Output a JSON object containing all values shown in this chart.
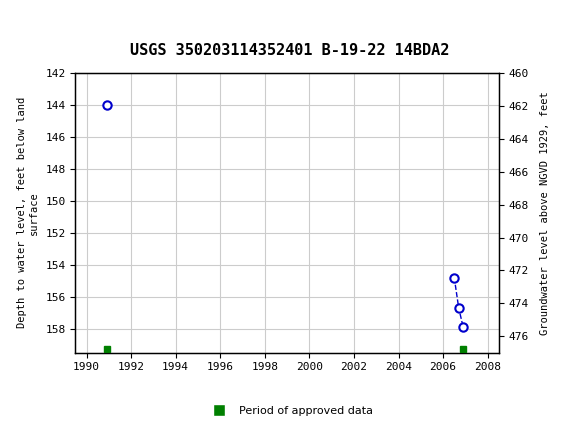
{
  "title": "USGS 350203114352401 B-19-22 14BDA2",
  "ylabel_left": "Depth to water level, feet below land\nsurface",
  "ylabel_right": "Groundwater level above NGVD 1929, feet",
  "xlim": [
    1989.5,
    2008.5
  ],
  "ylim_left": [
    142,
    159.5
  ],
  "ylim_right": [
    460,
    477
  ],
  "xticks": [
    1990,
    1992,
    1994,
    1996,
    1998,
    2000,
    2002,
    2004,
    2006,
    2008
  ],
  "yticks_left": [
    142,
    144,
    146,
    148,
    150,
    152,
    154,
    156,
    158
  ],
  "yticks_right": [
    460,
    462,
    464,
    466,
    468,
    470,
    472,
    474,
    476
  ],
  "data_points": [
    {
      "x": 1990.9,
      "y_left": 144.0
    },
    {
      "x": 2006.5,
      "y_left": 154.8
    },
    {
      "x": 2006.7,
      "y_left": 156.7
    },
    {
      "x": 2006.9,
      "y_left": 157.9
    }
  ],
  "approved_bars": [
    {
      "x": 1990.9,
      "y_left": 159.3
    },
    {
      "x": 2006.9,
      "y_left": 159.3
    }
  ],
  "point_color": "#0000cc",
  "approved_color": "#008000",
  "header_color": "#1a7a4a",
  "background_color": "#ffffff",
  "grid_color": "#cccccc",
  "font_family": "DejaVu Sans Mono",
  "legend_label": "Period of approved data"
}
